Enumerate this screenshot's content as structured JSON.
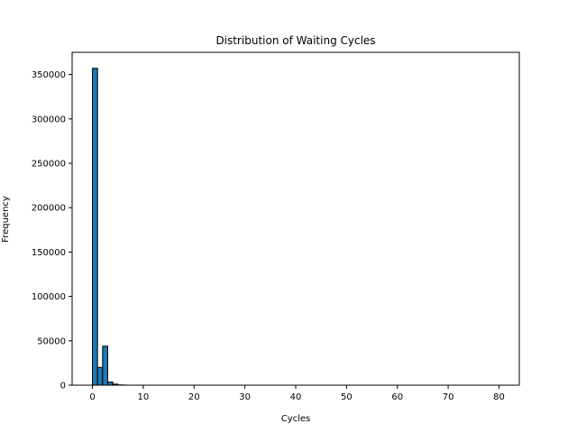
{
  "chart_data": {
    "type": "bar",
    "title": "Distribution of Waiting Cycles",
    "xlabel": "Cycles",
    "ylabel": "Frequency",
    "xlim": [
      -4,
      84
    ],
    "ylim": [
      0,
      375000
    ],
    "x_ticks": [
      0,
      10,
      20,
      30,
      40,
      50,
      60,
      70,
      80
    ],
    "y_ticks": [
      0,
      50000,
      100000,
      150000,
      200000,
      250000,
      300000,
      350000
    ],
    "bin_width": 1,
    "bins": [
      {
        "x0": 0,
        "x1": 1,
        "value": 357000
      },
      {
        "x0": 1,
        "x1": 2,
        "value": 20000
      },
      {
        "x0": 2,
        "x1": 3,
        "value": 44000
      },
      {
        "x0": 3,
        "x1": 4,
        "value": 3500
      },
      {
        "x0": 4,
        "x1": 5,
        "value": 1200
      },
      {
        "x0": 5,
        "x1": 6,
        "value": 300
      },
      {
        "x0": 6,
        "x1": 7,
        "value": 100
      }
    ],
    "bar_color": "#1f77b4",
    "edge_color": "#000000",
    "grid": false,
    "legend": "none"
  }
}
